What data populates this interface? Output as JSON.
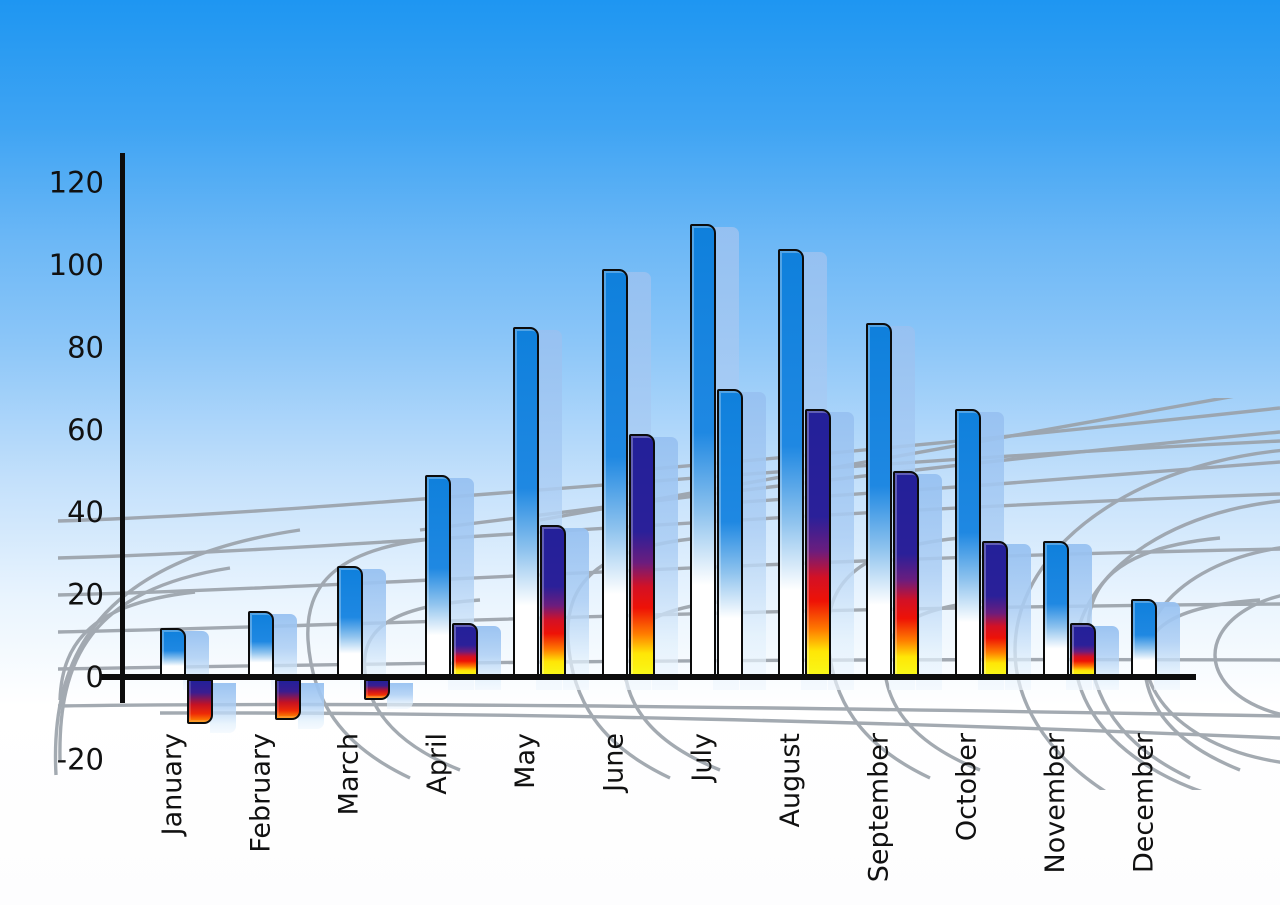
{
  "chart_data": {
    "type": "bar",
    "title": "",
    "xlabel": "",
    "ylabel": "",
    "categories": [
      "January",
      "February",
      "March",
      "April",
      "May",
      "June",
      "July",
      "August",
      "September",
      "October",
      "November",
      "December"
    ],
    "series": [
      {
        "name": "primary-blue-bars",
        "values": [
          12,
          16,
          27,
          49,
          85,
          99,
          110,
          104,
          86,
          65,
          33,
          19
        ]
      },
      {
        "name": "secondary-flame-bars",
        "values": [
          -11,
          -10,
          -5,
          13,
          37,
          59,
          70,
          65,
          50,
          33,
          13,
          null
        ]
      }
    ],
    "series2_bar_styles": [
      "flame",
      "flame",
      "flame",
      "flame",
      "flame",
      "flame",
      "blue",
      "flame",
      "flame",
      "flame",
      "flame",
      null
    ],
    "ylim": [
      -20,
      120
    ],
    "yticks": [
      120,
      100,
      80,
      60,
      40,
      20,
      0,
      -20
    ],
    "legend": "none",
    "grid": "decorative curved perspective mesh behind bars"
  },
  "colors": {
    "sky_top": "#1e96f2",
    "bar_blue": "#1080dd",
    "bar_shadow_blue": "#a9c9f1",
    "flame_navy": "#232099",
    "flame_red": "#e01111",
    "flame_yellow": "#ffe606",
    "axis_black": "#0d0d0d",
    "grid_gray": "#9aa1a9",
    "label_black": "#111111"
  }
}
